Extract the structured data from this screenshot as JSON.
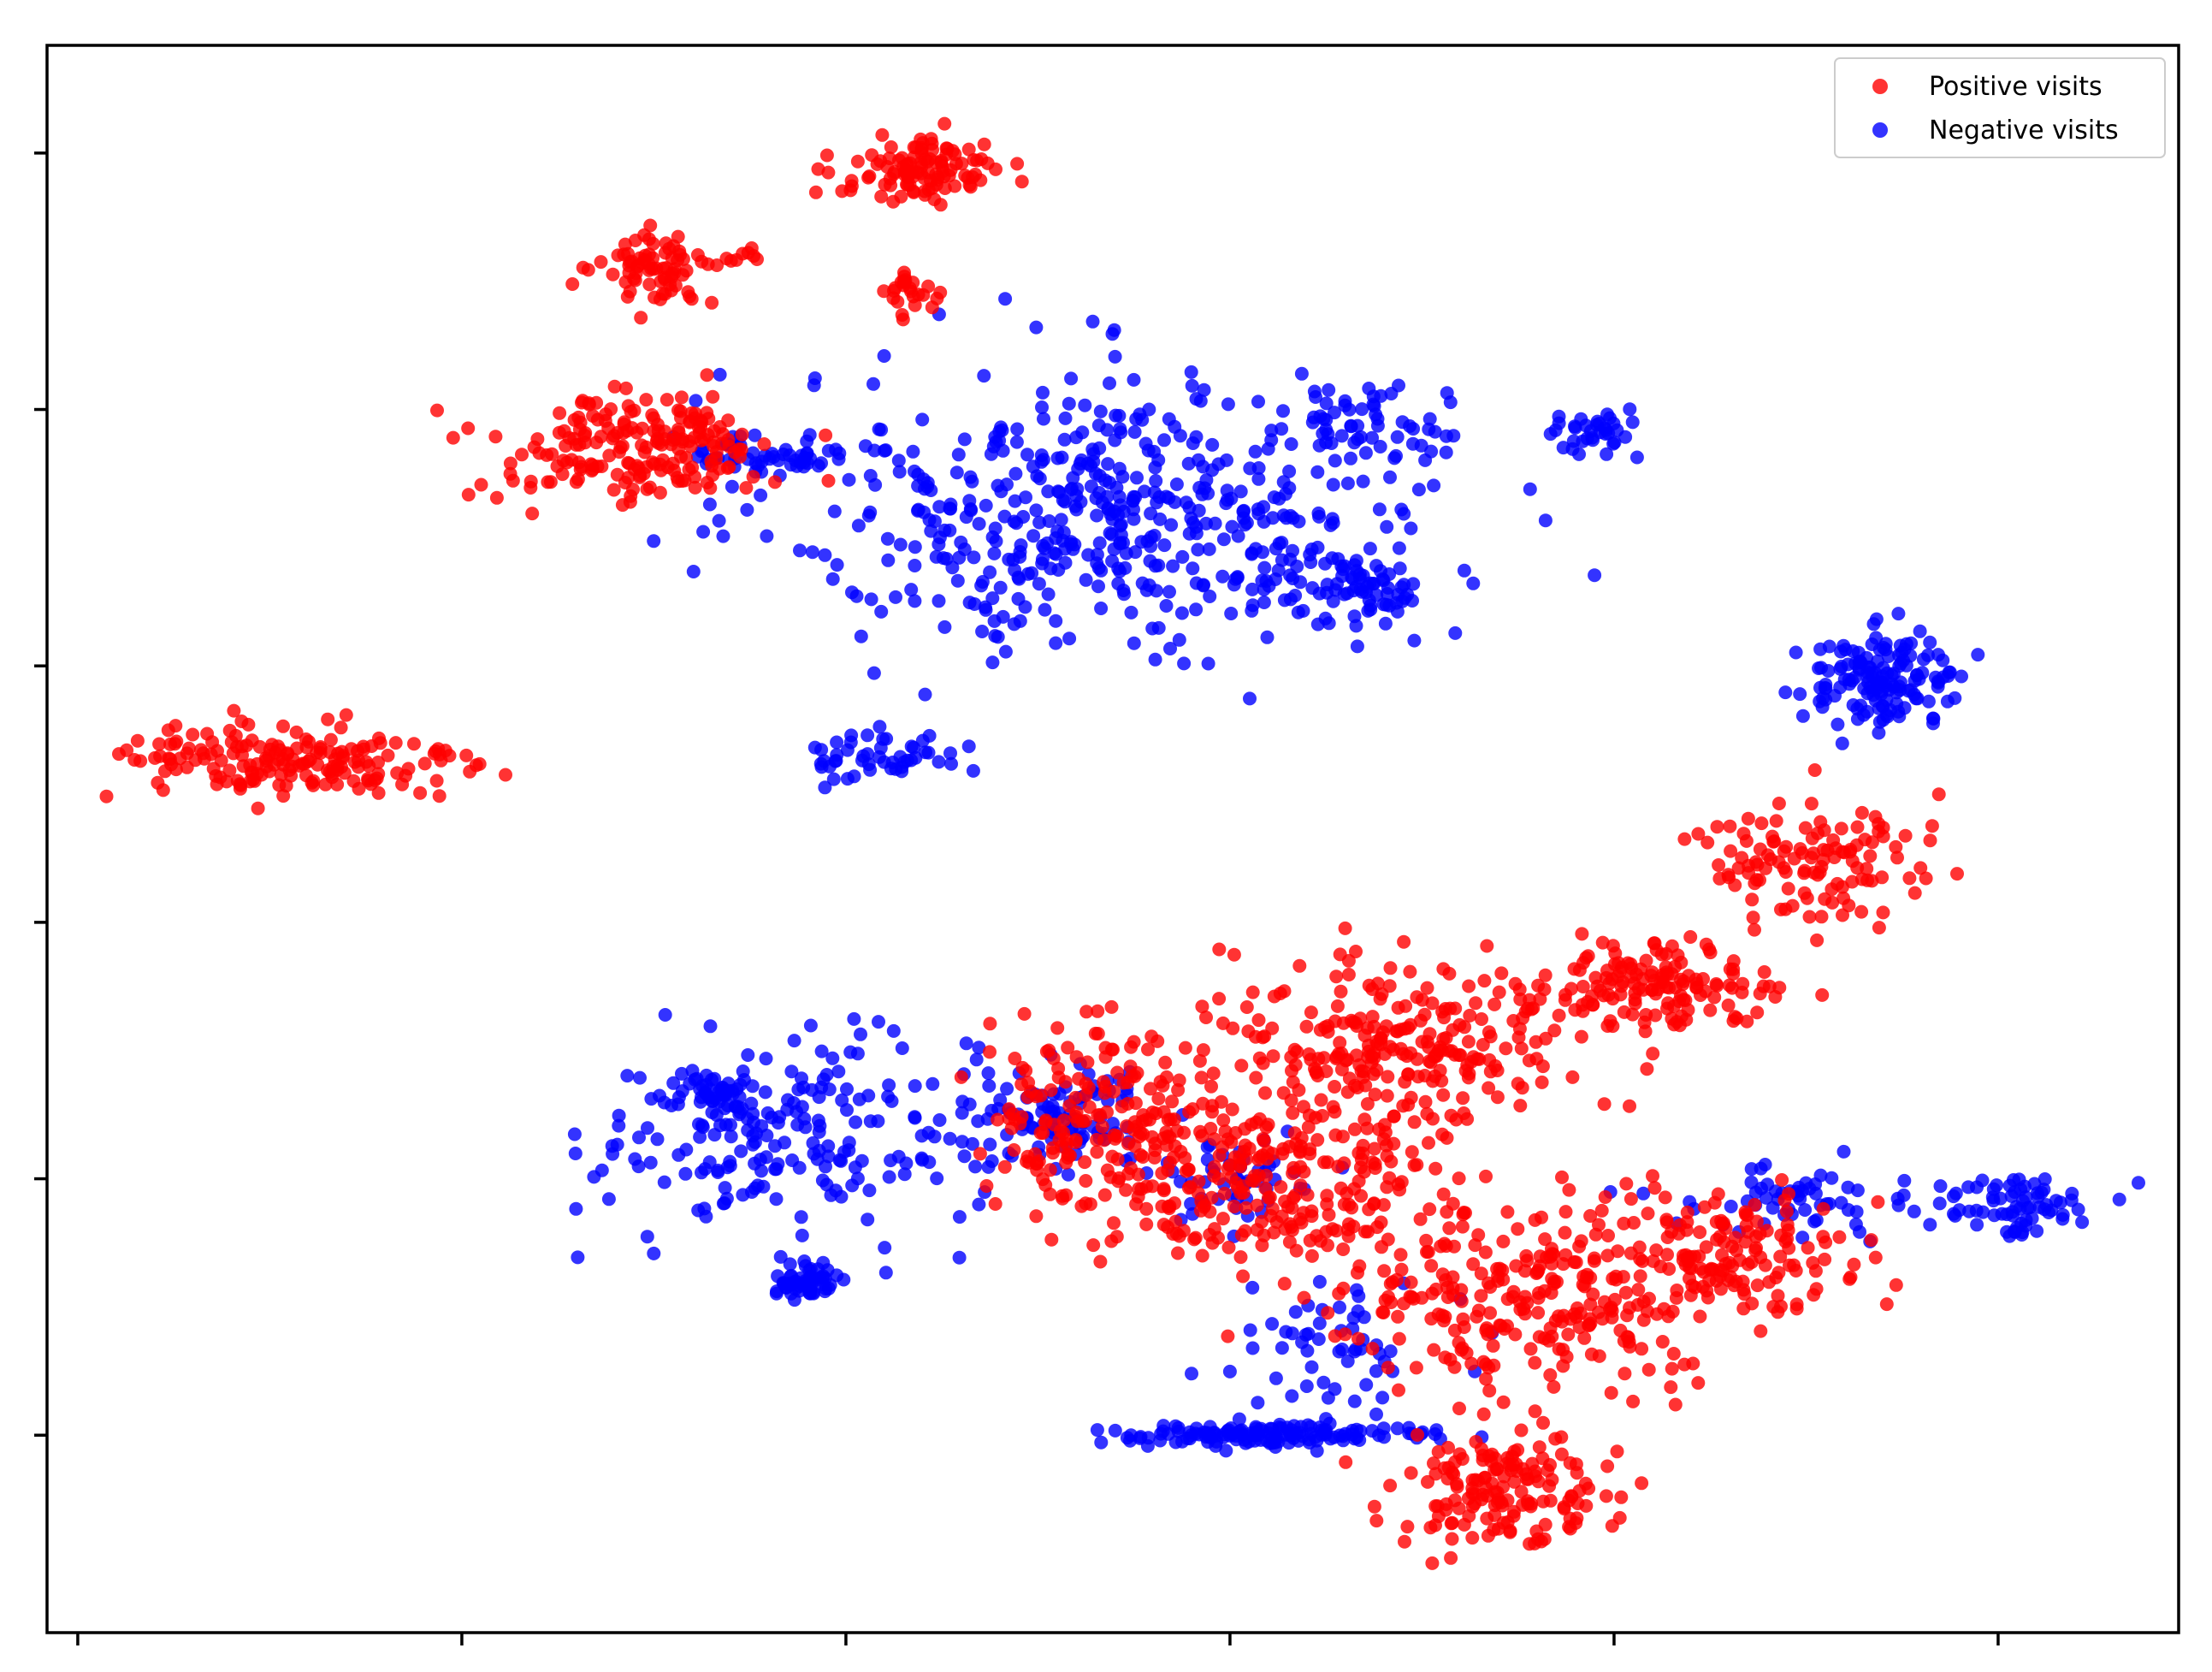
{
  "chart_data": {
    "type": "scatter",
    "title": "",
    "xlabel": "",
    "ylabel": "",
    "xlim": [
      -0.08,
      5.47
    ],
    "ylim": [
      -0.77,
      5.42
    ],
    "xticks": [
      0,
      1,
      2,
      3,
      4,
      5
    ],
    "yticks": [
      0,
      1,
      2,
      3,
      4,
      5
    ],
    "tick_labels_visible": false,
    "grid": false,
    "legend_position": "top-right",
    "series": [
      {
        "name": "Positive visits",
        "color": "#ff0000",
        "clusters": [
          {
            "cx": 0.55,
            "cy": 2.62,
            "rx": 0.48,
            "ry": 0.16,
            "n": 180
          },
          {
            "cx": 1.45,
            "cy": 3.85,
            "rx": 0.38,
            "ry": 0.22,
            "n": 200
          },
          {
            "cx": 1.5,
            "cy": 4.55,
            "rx": 0.14,
            "ry": 0.12,
            "n": 75
          },
          {
            "cx": 2.2,
            "cy": 4.93,
            "rx": 0.22,
            "ry": 0.13,
            "n": 110
          },
          {
            "cx": 2.18,
            "cy": 4.45,
            "rx": 0.07,
            "ry": 0.09,
            "n": 25
          },
          {
            "cx": 1.75,
            "cy": 4.6,
            "rx": 0.08,
            "ry": 0.04,
            "n": 8
          },
          {
            "cx": 4.1,
            "cy": 1.75,
            "rx": 0.28,
            "ry": 0.16,
            "n": 140
          },
          {
            "cx": 3.45,
            "cy": 1.55,
            "rx": 0.5,
            "ry": 0.35,
            "n": 260
          },
          {
            "cx": 4.5,
            "cy": 2.25,
            "rx": 0.3,
            "ry": 0.25,
            "n": 120
          },
          {
            "cx": 3.1,
            "cy": 1.0,
            "rx": 0.45,
            "ry": 0.35,
            "n": 260
          },
          {
            "cx": 2.65,
            "cy": 1.25,
            "rx": 0.28,
            "ry": 0.35,
            "n": 170
          },
          {
            "cx": 3.8,
            "cy": 0.55,
            "rx": 0.55,
            "ry": 0.35,
            "n": 280
          },
          {
            "cx": 3.7,
            "cy": -0.2,
            "rx": 0.28,
            "ry": 0.22,
            "n": 160
          },
          {
            "cx": 4.35,
            "cy": 0.7,
            "rx": 0.3,
            "ry": 0.25,
            "n": 130
          }
        ]
      },
      {
        "name": "Negative visits",
        "color": "#0000ff",
        "clusters": [
          {
            "cx": 2.7,
            "cy": 3.6,
            "rx": 0.85,
            "ry": 0.55,
            "n": 520
          },
          {
            "cx": 3.35,
            "cy": 3.3,
            "rx": 0.18,
            "ry": 0.14,
            "n": 60
          },
          {
            "cx": 3.35,
            "cy": 3.95,
            "rx": 0.2,
            "ry": 0.15,
            "n": 50
          },
          {
            "cx": 3.95,
            "cy": 3.9,
            "rx": 0.13,
            "ry": 0.08,
            "n": 35
          },
          {
            "cx": 2.1,
            "cy": 2.65,
            "rx": 0.2,
            "ry": 0.1,
            "n": 50
          },
          {
            "cx": 1.82,
            "cy": 3.83,
            "rx": 0.2,
            "ry": 0.08,
            "n": 50
          },
          {
            "cx": 4.7,
            "cy": 2.95,
            "rx": 0.22,
            "ry": 0.18,
            "n": 150
          },
          {
            "cx": 1.85,
            "cy": 1.15,
            "rx": 0.5,
            "ry": 0.4,
            "n": 220
          },
          {
            "cx": 1.65,
            "cy": 1.35,
            "rx": 0.07,
            "ry": 0.07,
            "n": 35
          },
          {
            "cx": 1.9,
            "cy": 0.6,
            "rx": 0.08,
            "ry": 0.06,
            "n": 60
          },
          {
            "cx": 2.55,
            "cy": 1.25,
            "rx": 0.25,
            "ry": 0.2,
            "n": 90
          },
          {
            "cx": 3.1,
            "cy": 0.0,
            "rx": 0.45,
            "ry": 0.04,
            "n": 140
          },
          {
            "cx": 3.3,
            "cy": 0.35,
            "rx": 0.25,
            "ry": 0.25,
            "n": 60
          },
          {
            "cx": 4.45,
            "cy": 0.9,
            "rx": 0.35,
            "ry": 0.15,
            "n": 60
          },
          {
            "cx": 5.05,
            "cy": 0.9,
            "rx": 0.2,
            "ry": 0.12,
            "n": 70
          },
          {
            "cx": 3.0,
            "cy": 1.0,
            "rx": 0.25,
            "ry": 0.2,
            "n": 50
          }
        ]
      }
    ]
  }
}
